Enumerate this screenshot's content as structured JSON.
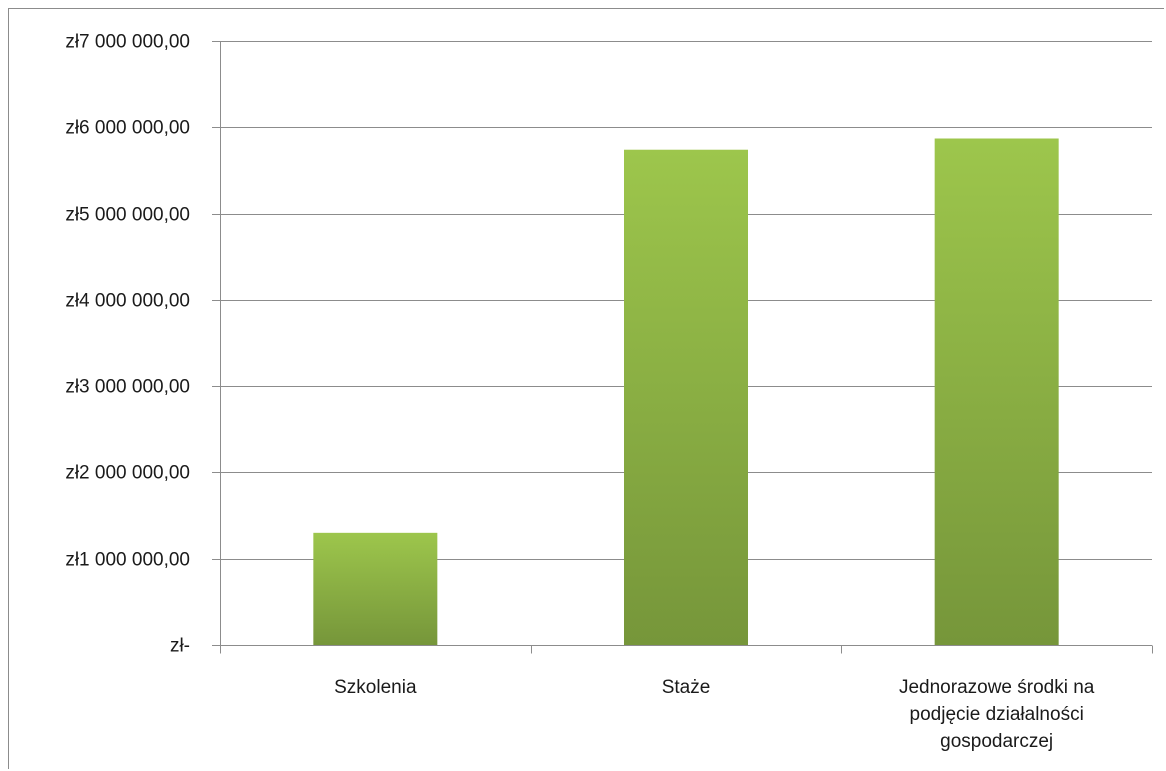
{
  "chart_data": {
    "type": "bar",
    "title": "",
    "xlabel": "",
    "ylabel": "",
    "categories": [
      [
        "Szkolenia"
      ],
      [
        "Staże"
      ],
      [
        "Jednorazowe środki na",
        "podjęcie działalności",
        "gospodarczej"
      ]
    ],
    "values": [
      1300000,
      5740000,
      5870000
    ],
    "ylim": [
      0,
      7000000
    ],
    "yticks": [
      0,
      1000000,
      2000000,
      3000000,
      4000000,
      5000000,
      6000000,
      7000000
    ],
    "ytick_labels": [
      "zł-",
      "zł1 000 000,00",
      "zł2 000 000,00",
      "zł3 000 000,00",
      "zł4 000 000,00",
      "zł5 000 000,00",
      "zł6 000 000,00",
      "zł7 000 000,00"
    ],
    "grid": true,
    "legend": "none",
    "colors": {
      "bar_top": "#9dc64c",
      "bar_bottom": "#76963a",
      "grid": "#8c8c8c",
      "axis": "#8c8c8c",
      "text": "#1a1a1a"
    }
  }
}
